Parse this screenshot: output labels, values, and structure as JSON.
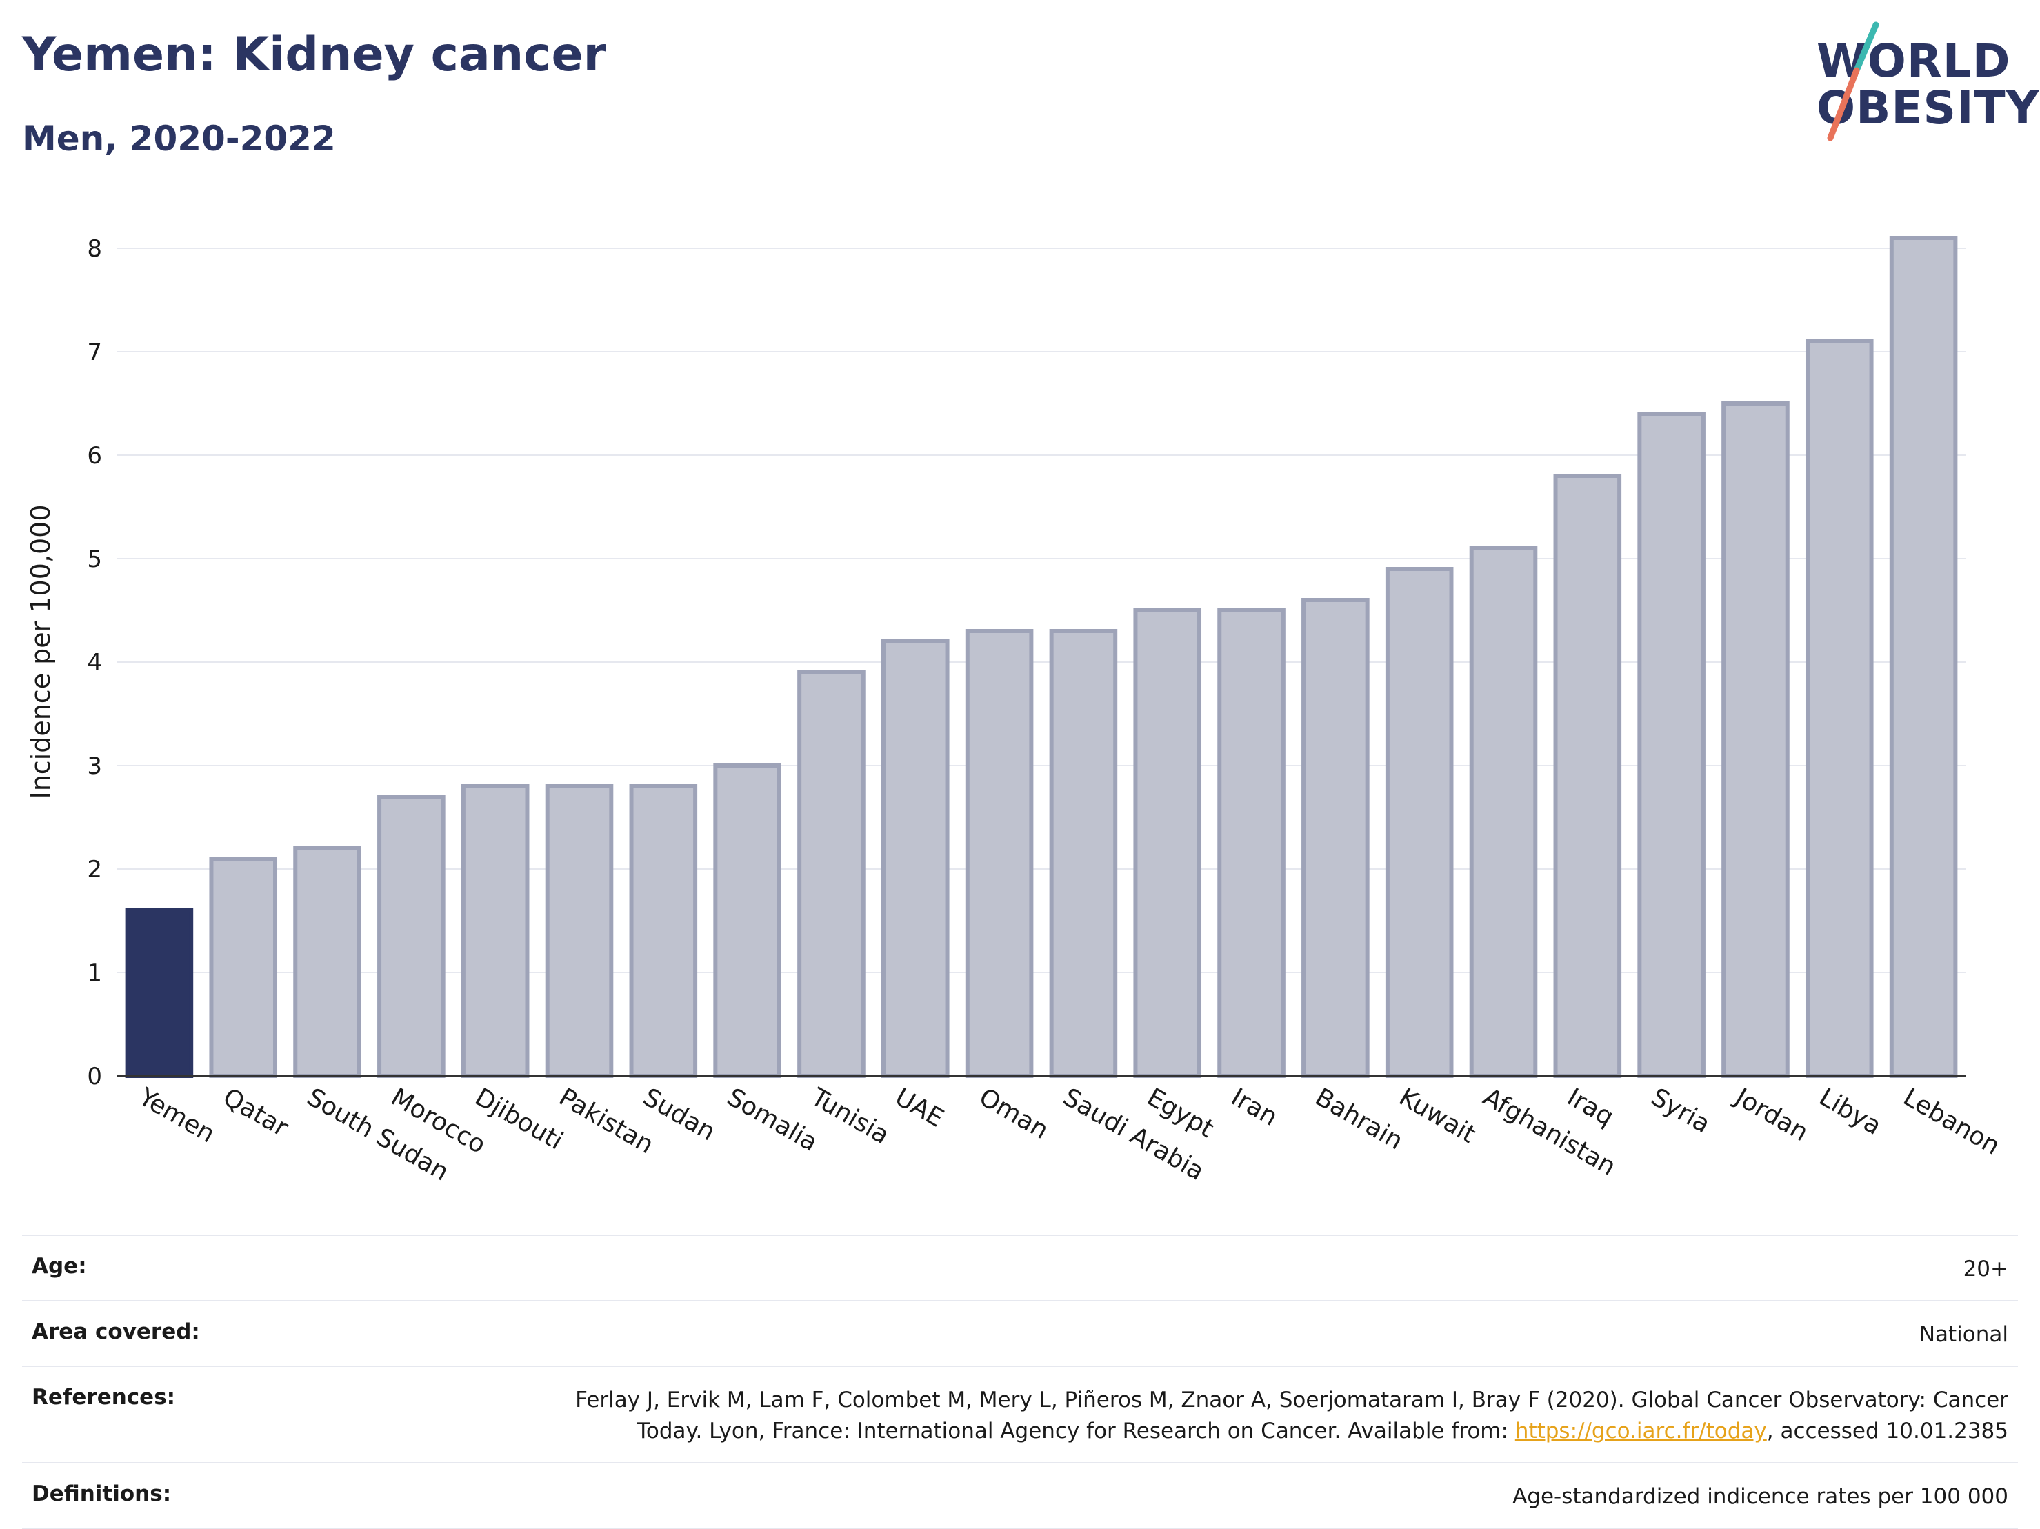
{
  "header": {
    "title": "Yemen: Kidney cancer",
    "subtitle": "Men, 2020-2022"
  },
  "logo": {
    "line1": "WORLD",
    "line2": "OBESITY",
    "colors": {
      "text": "#2b3562",
      "slash_top": "#3cb8b0",
      "slash_bottom": "#e8735a"
    }
  },
  "chart_data": {
    "type": "bar",
    "categories": [
      "Yemen",
      "Qatar",
      "South Sudan",
      "Morocco",
      "Djibouti",
      "Pakistan",
      "Sudan",
      "Somalia",
      "Tunisia",
      "UAE",
      "Oman",
      "Saudi Arabia",
      "Egypt",
      "Iran",
      "Bahrain",
      "Kuwait",
      "Afghanistan",
      "Iraq",
      "Syria",
      "Jordan",
      "Libya",
      "Lebanon"
    ],
    "values": [
      1.6,
      2.1,
      2.2,
      2.7,
      2.8,
      2.8,
      2.8,
      3.0,
      3.9,
      4.2,
      4.3,
      4.3,
      4.5,
      4.5,
      4.6,
      4.9,
      5.1,
      5.8,
      6.4,
      6.5,
      7.1,
      8.1
    ],
    "highlight": "Yemen",
    "ylabel": "Incidence per 100,000",
    "ylim": [
      0,
      8.2
    ],
    "yticks": [
      0,
      1,
      2,
      3,
      4,
      5,
      6,
      7,
      8
    ],
    "grid": true,
    "colors": {
      "highlight": "#2b3562",
      "bar_fill": "#bfc2cf",
      "bar_stroke": "#9ea3b8",
      "grid": "#e6e8ef",
      "axis": "#333333"
    }
  },
  "info": {
    "age": {
      "label": "Age:",
      "value": "20+"
    },
    "area": {
      "label": "Area covered:",
      "value": "National"
    },
    "references": {
      "label": "References:",
      "line1": "Ferlay J, Ervik M, Lam F, Colombet M, Mery L, Piñeros M, Znaor A, Soerjomataram I, Bray F (2020). Global Cancer Observatory: Cancer",
      "line2_prefix": "Today. Lyon, France: International Agency for Research on Cancer. Available from: ",
      "link": "https://gco.iarc.fr/today",
      "line2_suffix": ", accessed 10.01.2385"
    },
    "definitions": {
      "label": "Definitions:",
      "value": "Age-standardized indicence rates per 100 000"
    }
  }
}
